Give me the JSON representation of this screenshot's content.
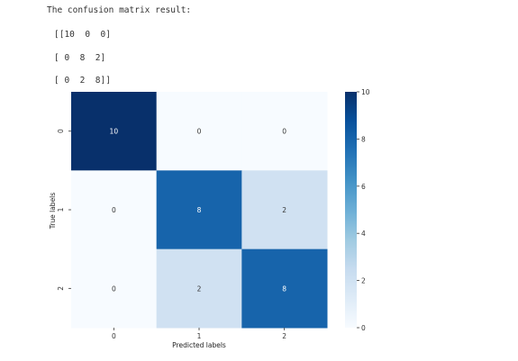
{
  "output": {
    "intro": "The confusion matrix result:",
    "matrix_lines": [
      "[[10  0  0]",
      "[ 0  8  2]",
      "[ 0  2  8]]"
    ]
  },
  "chart_data": {
    "type": "heatmap",
    "title": "",
    "xlabel": "Predicted labels",
    "ylabel": "True labels",
    "x_categories": [
      "0",
      "1",
      "2"
    ],
    "y_categories": [
      "0",
      "1",
      "2"
    ],
    "values": [
      [
        10,
        0,
        0
      ],
      [
        0,
        8,
        2
      ],
      [
        0,
        2,
        8
      ]
    ],
    "colorbar": {
      "min": 0,
      "max": 10,
      "ticks": [
        "0",
        "2",
        "4",
        "6",
        "8",
        "10"
      ]
    },
    "colormap": "Blues",
    "colors": {
      "low": "#f7fbff",
      "high": "#08306b"
    },
    "grid": false,
    "annotations": true
  }
}
